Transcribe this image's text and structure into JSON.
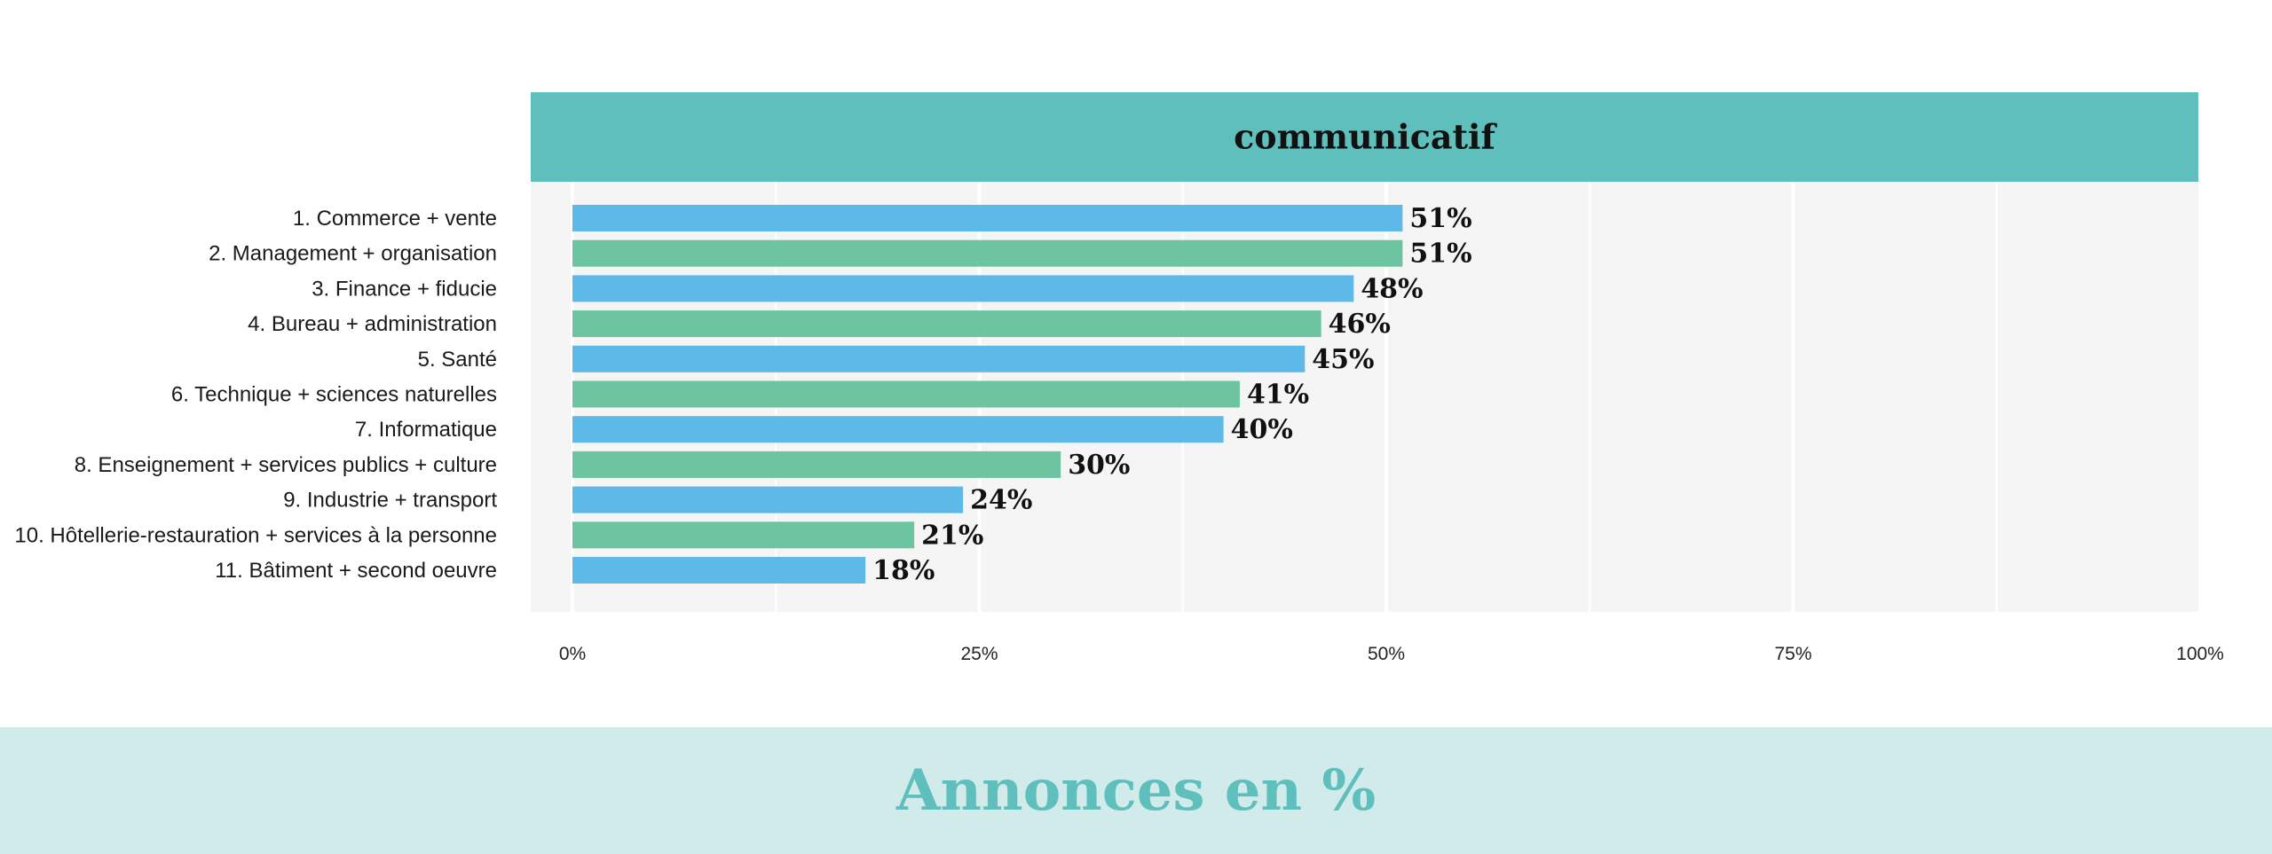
{
  "chart_data": {
    "type": "bar",
    "orientation": "horizontal",
    "title": "communicatif",
    "categories": [
      "1. Commerce + vente",
      "2. Management + organisation",
      "3. Finance + fiducie",
      "4. Bureau + administration",
      "5. Santé",
      "6. Technique + sciences naturelles",
      "7. Informatique",
      "8. Enseignement + services publics + culture",
      "9. Industrie + transport",
      "10. Hôtellerie-restauration + services à la personne",
      "11. Bâtiment + second oeuvre"
    ],
    "values": [
      51,
      51,
      48,
      46,
      45,
      41,
      40,
      30,
      24,
      21,
      18
    ],
    "value_labels": [
      "51%",
      "51%",
      "48%",
      "46%",
      "45%",
      "41%",
      "40%",
      "30%",
      "24%",
      "21%",
      "18%"
    ],
    "xlim": [
      0,
      100
    ],
    "xticks": [
      0,
      25,
      50,
      75,
      100
    ],
    "xtick_labels": [
      "0%",
      "25%",
      "50%",
      "75%",
      "100%"
    ],
    "grid": true,
    "legend": "none",
    "colors": {
      "bar_odd": "#5cb9e8",
      "bar_even": "#6cc4a0",
      "header": "#5fbfbc",
      "plot_bg": "#f5f5f5",
      "footer_bg": "#d1ebea",
      "footer_text": "#5fbfbc"
    }
  },
  "footer": {
    "title": "Annonces en %"
  }
}
